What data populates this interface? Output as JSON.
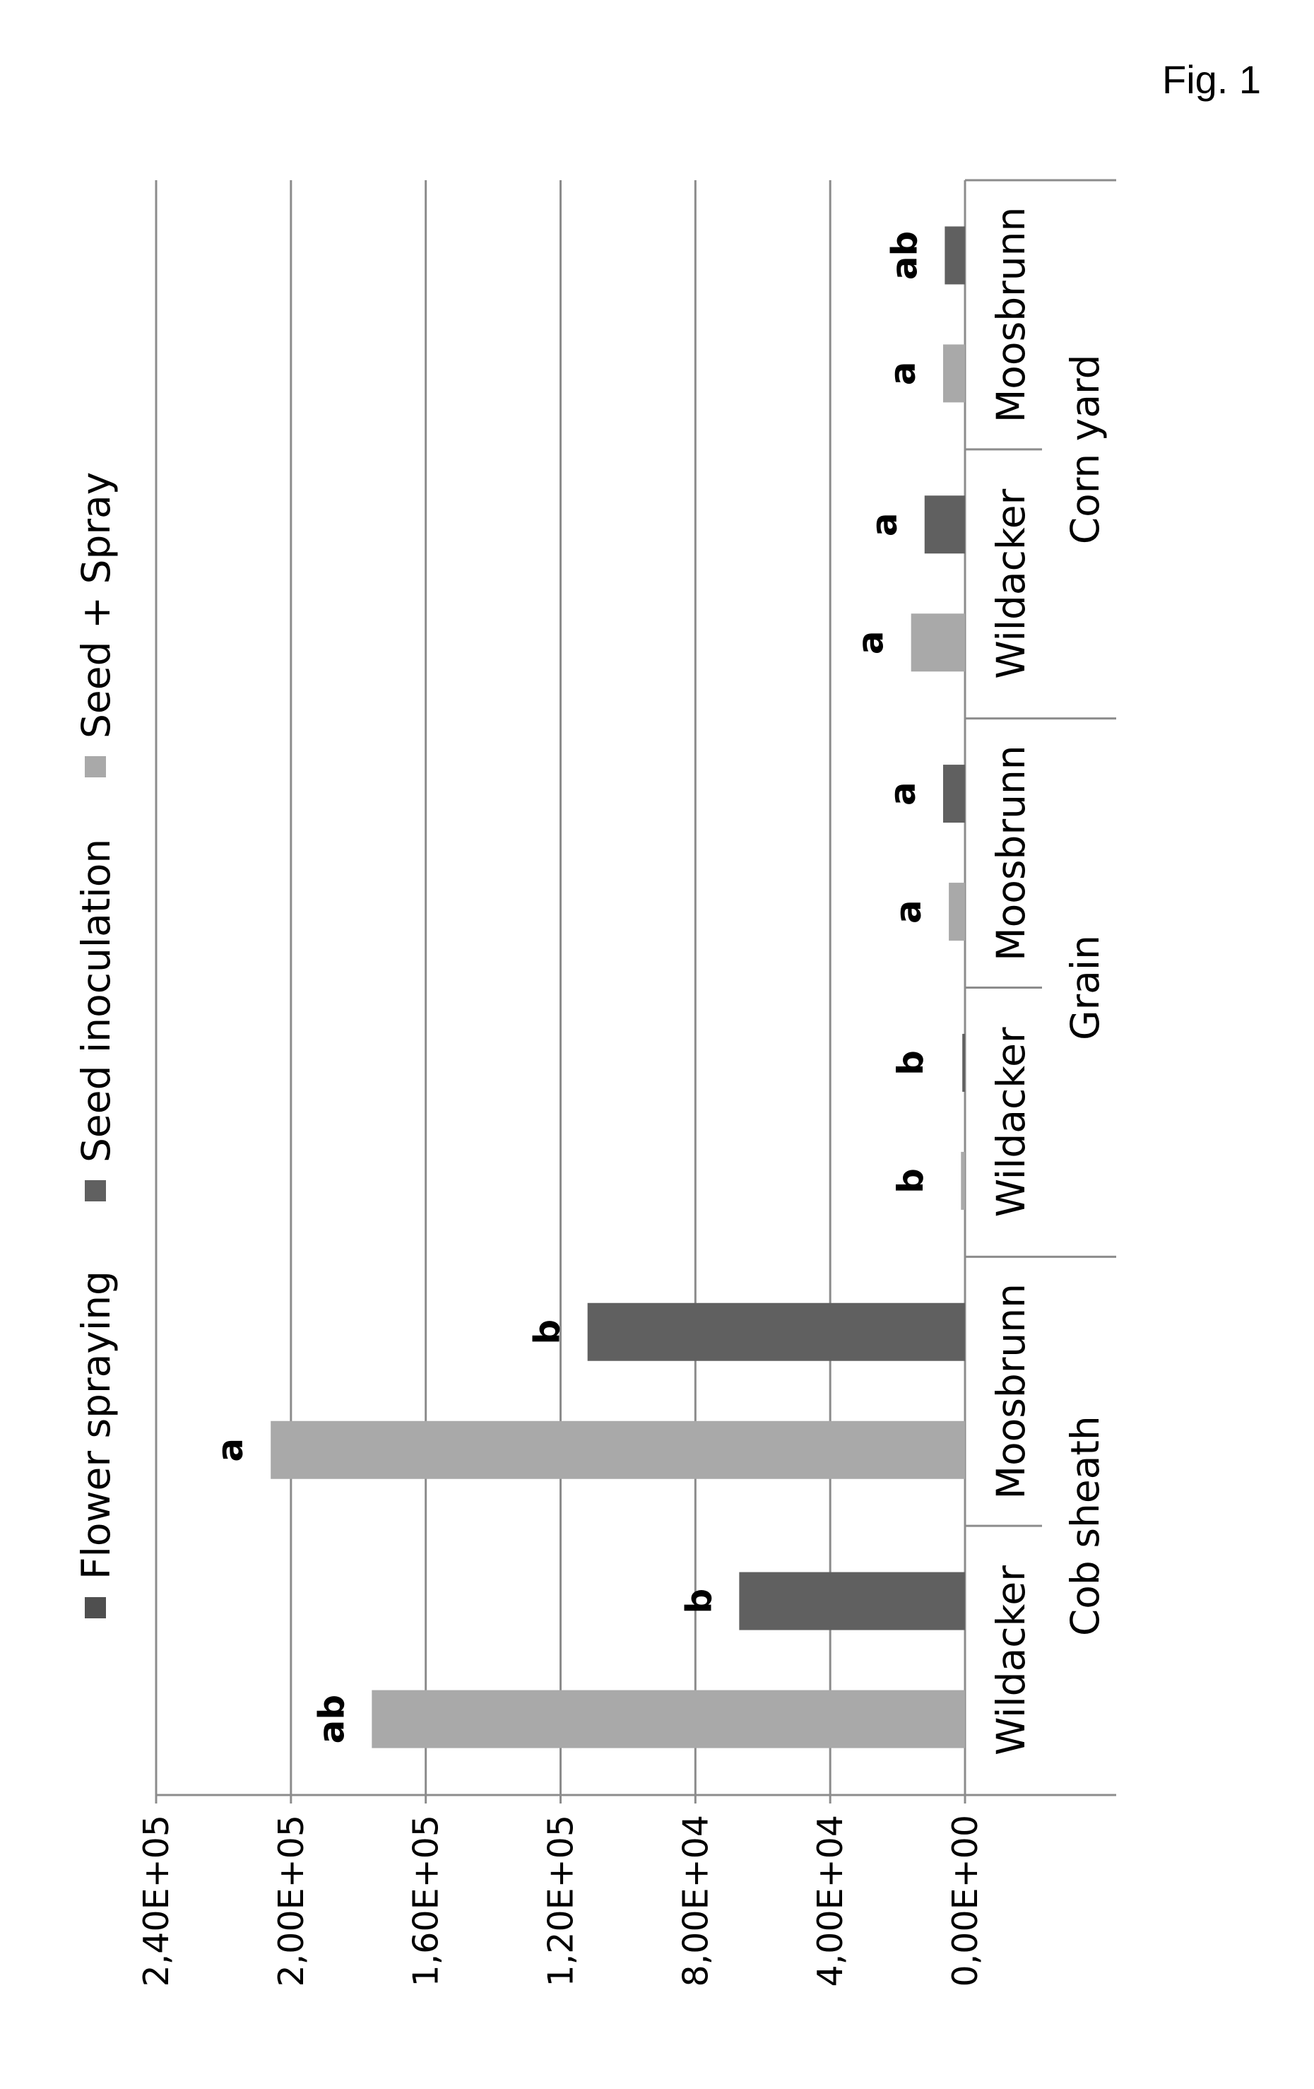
{
  "figure_label": "Fig. 1",
  "chart_data": {
    "type": "bar",
    "orientation": "rotated",
    "yticks": [
      "0,00E+00",
      "4,00E+04",
      "8,00E+04",
      "1,20E+05",
      "1,60E+05",
      "2,00E+05",
      "2,40E+05"
    ],
    "ylim": [
      0,
      240000
    ],
    "groups": [
      {
        "label": "Cob sheath",
        "categories": [
          "Wildacker",
          "Moosbrunn"
        ]
      },
      {
        "label": "Grain",
        "categories": [
          "Wildacker",
          "Moosbrunn"
        ]
      },
      {
        "label": "Corn yard",
        "categories": [
          "Wildacker",
          "Moosbrunn"
        ]
      }
    ],
    "categories": [
      "Wildacker",
      "Moosbrunn",
      "Wildacker",
      "Moosbrunn",
      "Wildacker",
      "Moosbrunn"
    ],
    "series": [
      {
        "name": "Flower spraying",
        "color": "#4f4f4f",
        "values": [
          0,
          0,
          0,
          0,
          0,
          0
        ]
      },
      {
        "name": "Seed inoculation",
        "color": "#606060",
        "values": [
          67000,
          112000,
          800,
          6500,
          12000,
          6000
        ],
        "labels": [
          "b",
          "b",
          "b",
          "a",
          "a",
          "ab"
        ]
      },
      {
        "name": "Seed + Spray",
        "color": "#a9a9a9",
        "values": [
          176000,
          206000,
          1200,
          4800,
          16000,
          6500
        ],
        "labels": [
          "ab",
          "a",
          "b",
          "a",
          "a",
          "a"
        ]
      }
    ],
    "grid": true,
    "legend_position": "top"
  }
}
